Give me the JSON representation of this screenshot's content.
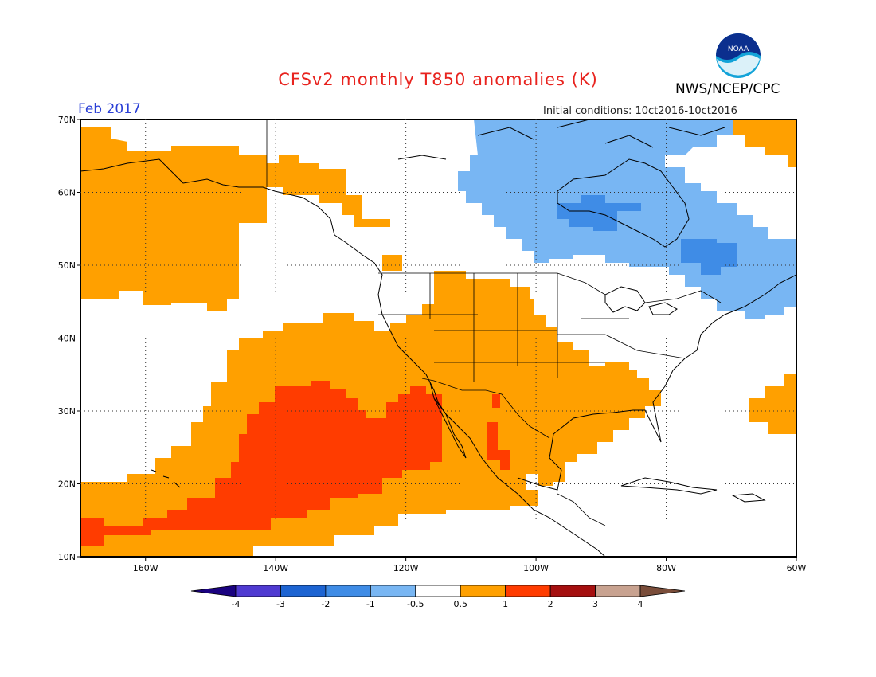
{
  "header": {
    "title": "CFSv2 monthly T850 anomalies (K)",
    "org": "NWS/NCEP/CPC",
    "month": "Feb 2017",
    "initial_conditions": "Initial conditions: 10ct2016-10ct2016",
    "logo_text": "NOAA"
  },
  "map": {
    "lon_range": [
      -170,
      -60
    ],
    "lat_range": [
      10,
      70
    ],
    "lat_ticks": [
      "10N",
      "20N",
      "30N",
      "40N",
      "50N",
      "60N",
      "70N"
    ],
    "lon_ticks": [
      "160W",
      "140W",
      "120W",
      "100W",
      "80W",
      "60W"
    ],
    "grid": "dotted"
  },
  "legend": {
    "labels": [
      "-4",
      "-3",
      "-2",
      "-1",
      "-0.5",
      "0.5",
      "1",
      "2",
      "3",
      "4"
    ],
    "colors": [
      "#1a0280",
      "#4f3ad1",
      "#1d64d2",
      "#3f8ce6",
      "#78b6f3",
      "#ffffff",
      "#ffa000",
      "#ff3c00",
      "#a50f0f",
      "#c8a290",
      "#7a4d3a"
    ]
  }
}
